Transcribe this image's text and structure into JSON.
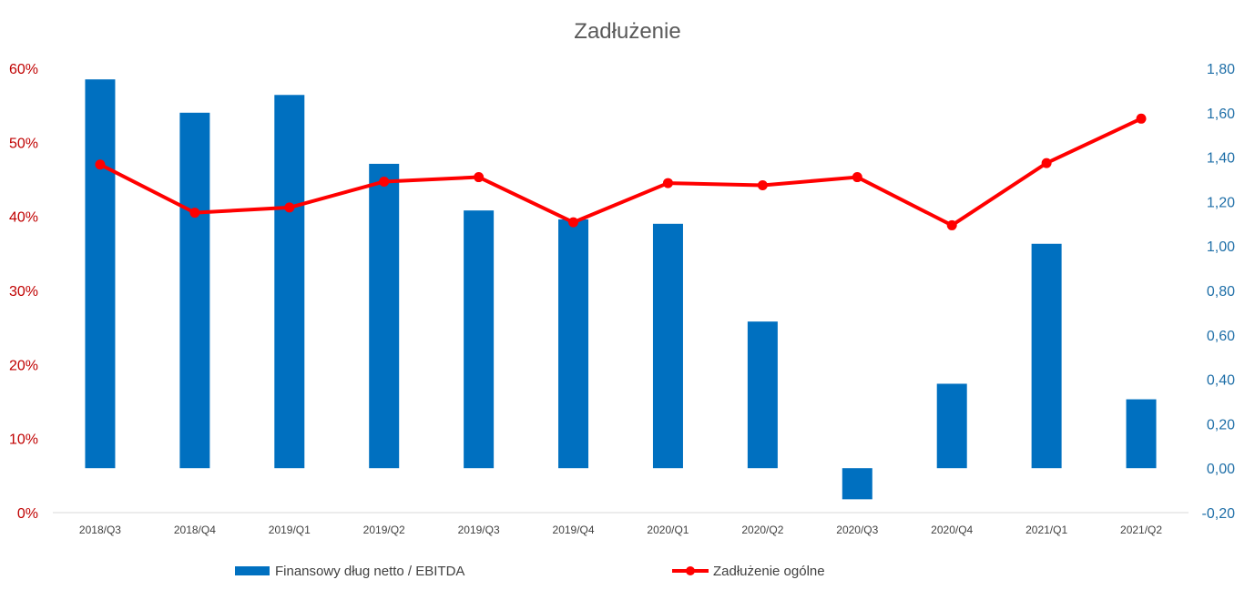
{
  "chart_data": {
    "type": "bar",
    "title": "Zadłużenie",
    "categories": [
      "2018/Q3",
      "2018/Q4",
      "2019/Q1",
      "2019/Q2",
      "2019/Q3",
      "2019/Q4",
      "2020/Q1",
      "2020/Q2",
      "2020/Q3",
      "2020/Q4",
      "2021/Q1",
      "2021/Q2"
    ],
    "series": [
      {
        "name": "Finansowy dług netto / EBITDA",
        "type": "bar",
        "axis": "right",
        "color": "#0070C0",
        "values": [
          1.75,
          1.6,
          1.68,
          1.37,
          1.16,
          1.12,
          1.1,
          0.66,
          -0.14,
          0.38,
          1.01,
          0.31
        ]
      },
      {
        "name": "Zadłużenie ogólne",
        "type": "line",
        "axis": "left",
        "color": "#FF0000",
        "values": [
          0.47,
          0.405,
          0.412,
          0.447,
          0.453,
          0.392,
          0.445,
          0.442,
          0.453,
          0.388,
          0.472,
          0.532
        ]
      }
    ],
    "left_axis": {
      "min": 0,
      "max": 0.6,
      "step": 0.1,
      "ticks": [
        "0%",
        "10%",
        "20%",
        "30%",
        "40%",
        "50%",
        "60%"
      ],
      "color": "#C00000"
    },
    "right_axis": {
      "min": -0.2,
      "max": 1.8,
      "step": 0.2,
      "ticks": [
        "-0,20",
        "0,00",
        "0,20",
        "0,40",
        "0,60",
        "0,80",
        "1,00",
        "1,20",
        "1,40",
        "1,60",
        "1,80"
      ],
      "color": "#1F6FA8"
    },
    "grid": false,
    "legend_position": "bottom"
  }
}
